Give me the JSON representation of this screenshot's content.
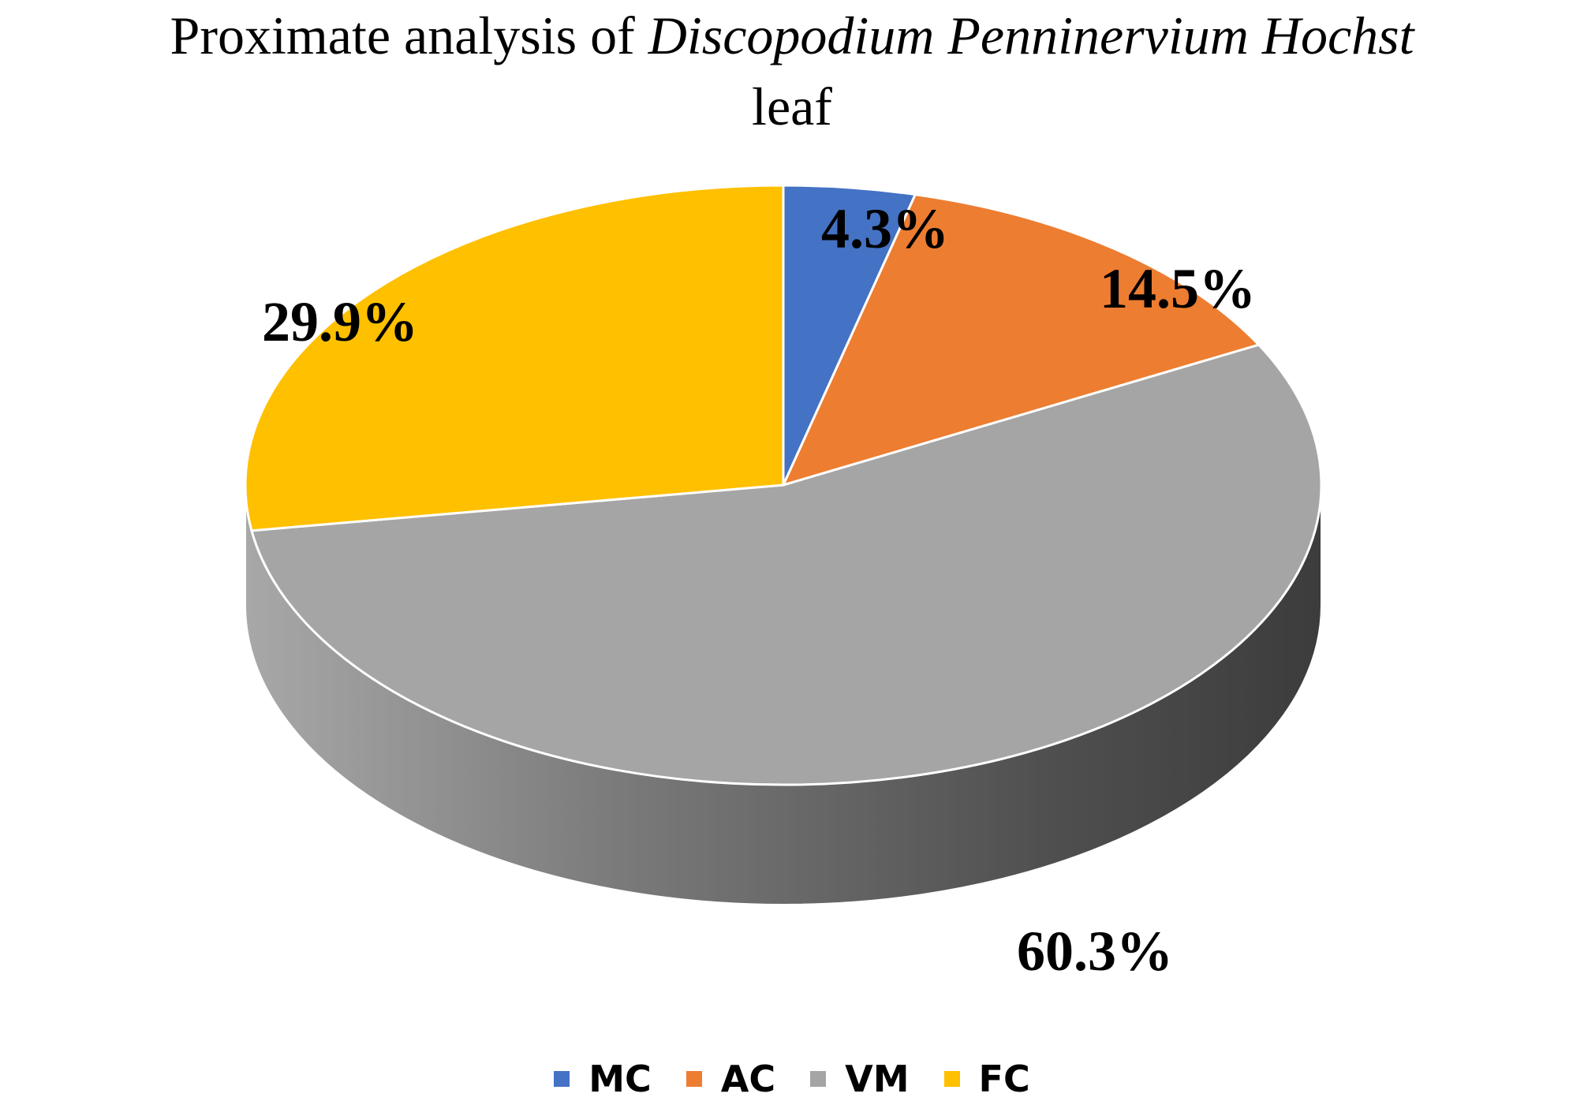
{
  "chart_data": {
    "type": "pie",
    "title_parts": [
      "Proximate analysis of ",
      "Discopodium Penninervium Hochst",
      " leaf"
    ],
    "categories": [
      "MC",
      "AC",
      "VM",
      "FC"
    ],
    "values": [
      4.3,
      14.5,
      60.3,
      29.9
    ],
    "labels": [
      "4.3%",
      "14.5%",
      "60.3%",
      "29.9%"
    ],
    "colors": [
      "#4472C4",
      "#ED7D31",
      "#A5A5A5",
      "#FFC000"
    ],
    "legend_position": "bottom",
    "style": "3d"
  }
}
